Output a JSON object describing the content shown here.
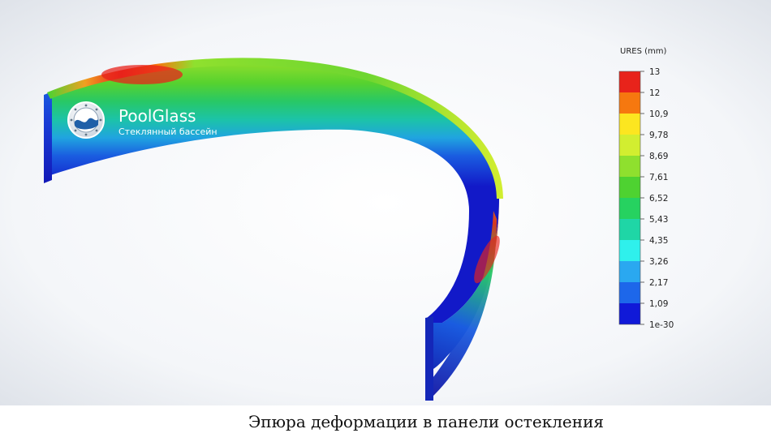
{
  "logo": {
    "name": "PoolGlass",
    "tagline": "Стеклянный бассейн"
  },
  "legend": {
    "title": "URES (mm)",
    "ticks": [
      "13",
      "12",
      "10,9",
      "9,78",
      "8,69",
      "7,61",
      "6,52",
      "5,43",
      "4,35",
      "3,26",
      "2,17",
      "1,09",
      "1e-30"
    ],
    "colors": [
      "#e8231b",
      "#f6780f",
      "#fce620",
      "#d2ee30",
      "#8fe02e",
      "#4ed231",
      "#26d260",
      "#1fd6a6",
      "#2ff0ec",
      "#2aa8f0",
      "#1d67ea",
      "#1019d8"
    ]
  },
  "caption": "Эпюра деформации в панели остекления"
}
